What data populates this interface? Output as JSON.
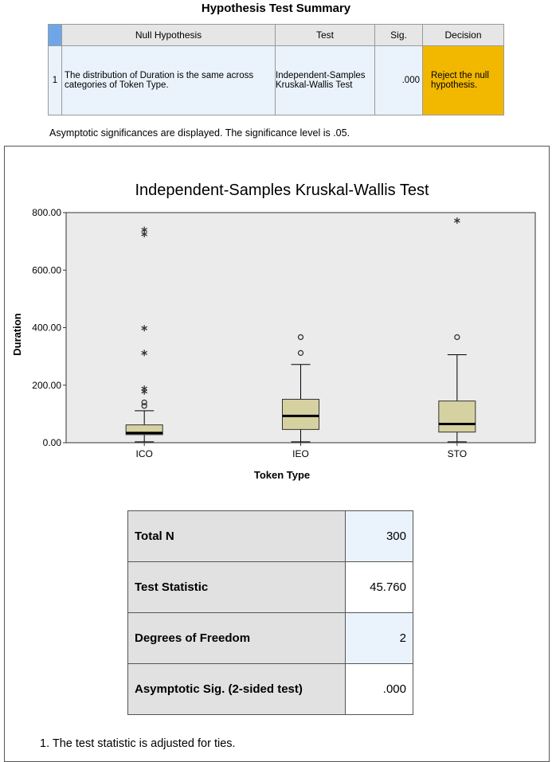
{
  "summary": {
    "title": "Hypothesis Test Summary",
    "headers": [
      "Null Hypothesis",
      "Test",
      "Sig.",
      "Decision"
    ],
    "rows": [
      {
        "number": "1",
        "hypothesis": "The distribution of Duration is the same across categories of Token Type.",
        "test": "Independent-Samples Kruskal-Wallis Test",
        "sig": ".000",
        "decision": "Reject the null hypothesis."
      }
    ],
    "note": "Asymptotic significances are displayed.  The significance level is .05."
  },
  "chart_data": {
    "type": "boxplot",
    "title": "Independent-Samples Kruskal-Wallis Test",
    "x_label": "Token Type",
    "y_label": "Duration",
    "categories": [
      "ICO",
      "IEO",
      "STO"
    ],
    "boxes": [
      {
        "whisker_low": 3,
        "q1": 28,
        "median": 34,
        "q3": 62,
        "whisker_high": 111,
        "outliers": [
          140,
          128
        ],
        "extremes": [
          740,
          725,
          398,
          312,
          188,
          178
        ]
      },
      {
        "whisker_low": 3,
        "q1": 46,
        "median": 93,
        "q3": 151,
        "whisker_high": 272,
        "outliers": [
          367,
          312
        ],
        "extremes": []
      },
      {
        "whisker_low": 3,
        "q1": 37,
        "median": 65,
        "q3": 145,
        "whisker_high": 306,
        "outliers": [
          367
        ],
        "extremes": [
          772
        ]
      }
    ],
    "box_color": "#d6d1a0",
    "plot_background": "#ebebeb",
    "ylim": [
      0,
      800
    ],
    "yticks": [
      {
        "value": 0,
        "label": "0.00"
      },
      {
        "value": 200,
        "label": "200.00"
      },
      {
        "value": 400,
        "label": "400.00"
      },
      {
        "value": 600,
        "label": "600.00"
      },
      {
        "value": 800,
        "label": "800.00"
      }
    ]
  },
  "stats": {
    "rows": [
      [
        "Total N",
        "300"
      ],
      [
        "Test Statistic",
        "45.760"
      ],
      [
        "Degrees of Freedom",
        "2"
      ],
      [
        "Asymptotic Sig. (2-sided test)",
        ".000"
      ]
    ],
    "footnote": "1.  The test statistic is adjusted for ties."
  }
}
